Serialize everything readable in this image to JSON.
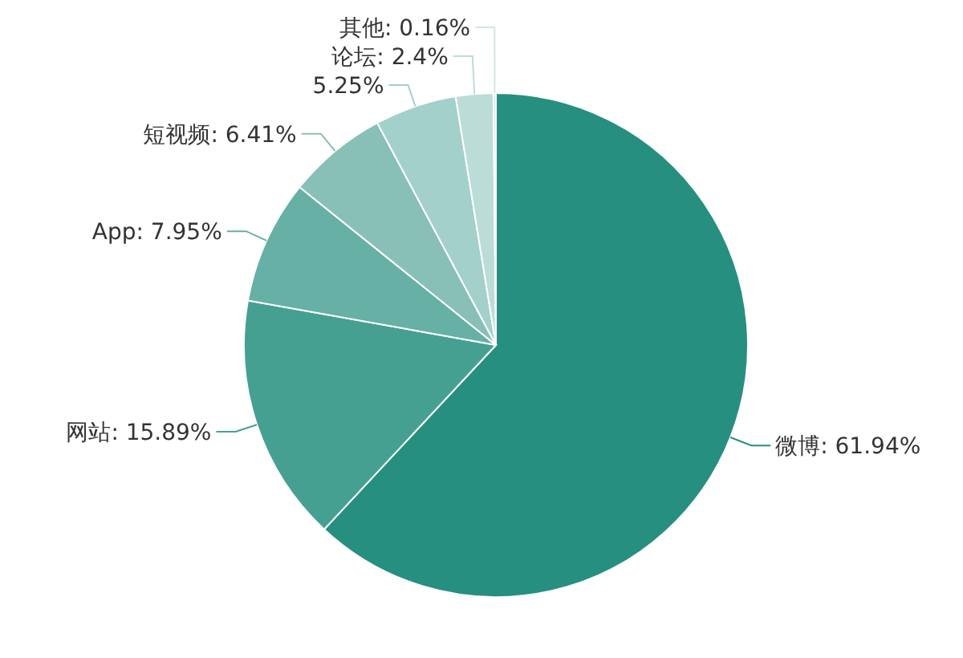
{
  "chart_data": {
    "type": "pie",
    "categories": [
      "微博",
      "网站",
      "App",
      "短视频",
      null,
      "论坛",
      "其他"
    ],
    "values": [
      61.94,
      15.89,
      7.95,
      6.41,
      5.25,
      2.4,
      0.16
    ],
    "value_labels": [
      "61.94%",
      "15.89%",
      "7.95%",
      "6.41%",
      "5.25%",
      "2.4%",
      "0.16%"
    ],
    "colors": [
      "#268f80",
      "#45a092",
      "#66b0a5",
      "#88c0b8",
      "#a3d0ca",
      "#bcdcd8",
      "#d2e8e5"
    ]
  }
}
